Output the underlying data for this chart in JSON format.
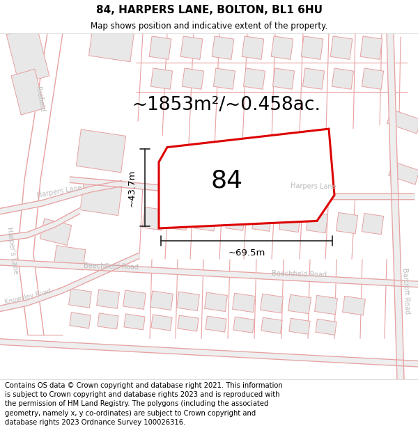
{
  "title_line1": "84, HARPERS LANE, BOLTON, BL1 6HU",
  "title_line2": "Map shows position and indicative extent of the property.",
  "footer_text": "Contains OS data © Crown copyright and database right 2021. This information is subject to Crown copyright and database rights 2023 and is reproduced with the permission of HM Land Registry. The polygons (including the associated geometry, namely x, y co-ordinates) are subject to Crown copyright and database rights 2023 Ordnance Survey 100026316.",
  "area_label": "~1853m²/~0.458ac.",
  "number_label": "84",
  "width_label": "~69.5m",
  "height_label": "~43.7m",
  "map_bg": "#ffffff",
  "road_fill": "#f5f5f5",
  "road_outline_color": "#e8a0a0",
  "building_fill": "#e8e8e8",
  "building_outline": "#e8a0a0",
  "harpers_lane_fill": "#eeeeee",
  "harpers_lane_color": "#c0c0c0",
  "plot_outline": "#dd0000",
  "plot_fill": "#ffffff",
  "dim_line_color": "#222222",
  "street_label_color": "#bbbbbb",
  "title_fontsize": 11,
  "subtitle_fontsize": 8.5,
  "footer_fontsize": 7.2,
  "area_fontsize": 19,
  "number_fontsize": 26,
  "dim_fontsize": 9.5,
  "street_fontsize": 7
}
